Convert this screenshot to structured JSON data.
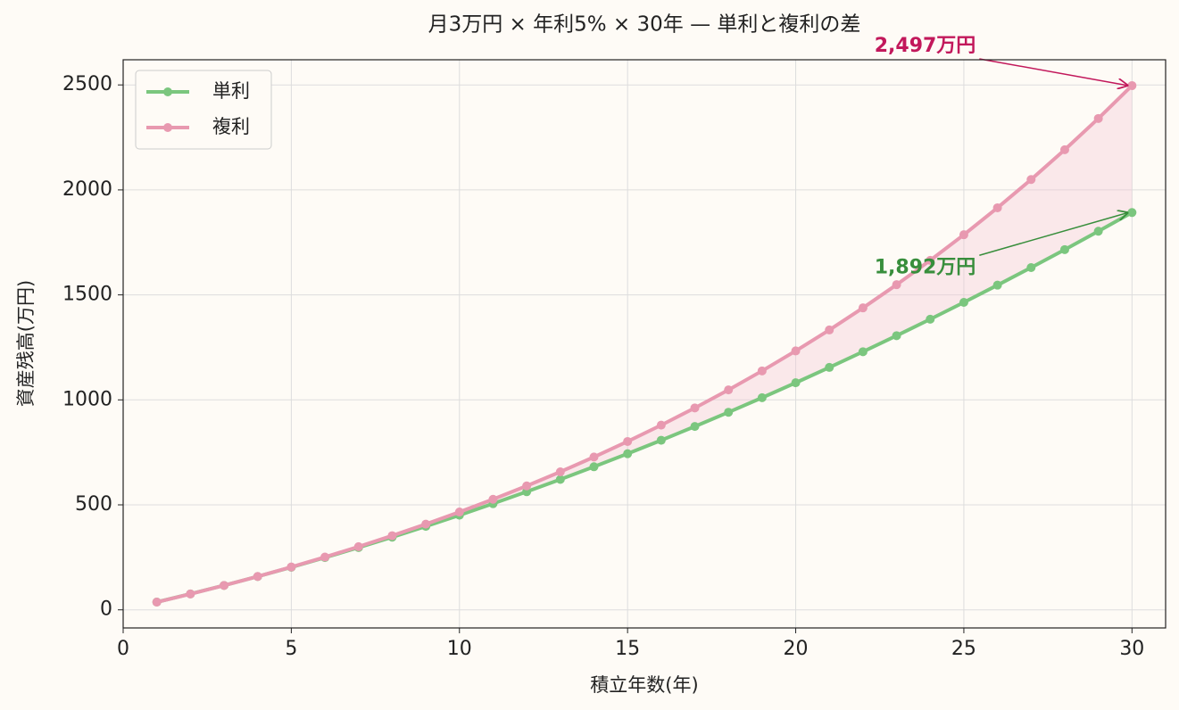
{
  "chart_data": {
    "type": "line",
    "title": "月3万円 × 年利5% × 30年 — 単利と複利の差",
    "xlabel": "積立年数(年)",
    "ylabel": "資産残高(万円)",
    "x": [
      1,
      2,
      3,
      4,
      5,
      6,
      7,
      8,
      9,
      10,
      11,
      12,
      13,
      14,
      15,
      16,
      17,
      18,
      19,
      20,
      21,
      22,
      23,
      24,
      25,
      26,
      27,
      28,
      29,
      30
    ],
    "series": [
      {
        "name": "単利",
        "color": "#7bc67e",
        "values": [
          37.0,
          75.8,
          116.3,
          158.7,
          202.9,
          248.9,
          296.6,
          346.2,
          397.6,
          450.8,
          505.7,
          562.5,
          621.1,
          681.5,
          743.6,
          807.6,
          873.4,
          941.0,
          1010.3,
          1081.5,
          1154.5,
          1229.3,
          1305.8,
          1384.2,
          1464.4,
          1546.4,
          1630.1,
          1715.7,
          1803.1,
          1892.3
        ]
      },
      {
        "name": "複利",
        "color": "#e899b0",
        "values": [
          36.8,
          75.6,
          116.3,
          159.0,
          204.0,
          251.3,
          301.0,
          353.2,
          408.1,
          465.8,
          526.5,
          590.3,
          657.3,
          727.8,
          801.9,
          879.7,
          961.6,
          1047.6,
          1138.0,
          1233.1,
          1333.0,
          1438.1,
          1548.5,
          1664.5,
          1786.5,
          1914.8,
          2049.6,
          2191.3,
          2340.2,
          2496.8
        ]
      }
    ],
    "fill_between_color": "#f4c6d3",
    "annotations": [
      {
        "text": "1,892万円",
        "color": "#388e3c"
      },
      {
        "text": "2,497万円",
        "color": "#c2185b"
      }
    ],
    "xlim": [
      0,
      31
    ],
    "xticks": [
      0,
      5,
      10,
      15,
      20,
      25,
      30
    ],
    "ylim": [
      -86.2,
      2619.8
    ],
    "yticks": [
      0,
      500,
      1000,
      1500,
      2000,
      2500
    ],
    "grid": true,
    "legend": "upper-left"
  }
}
